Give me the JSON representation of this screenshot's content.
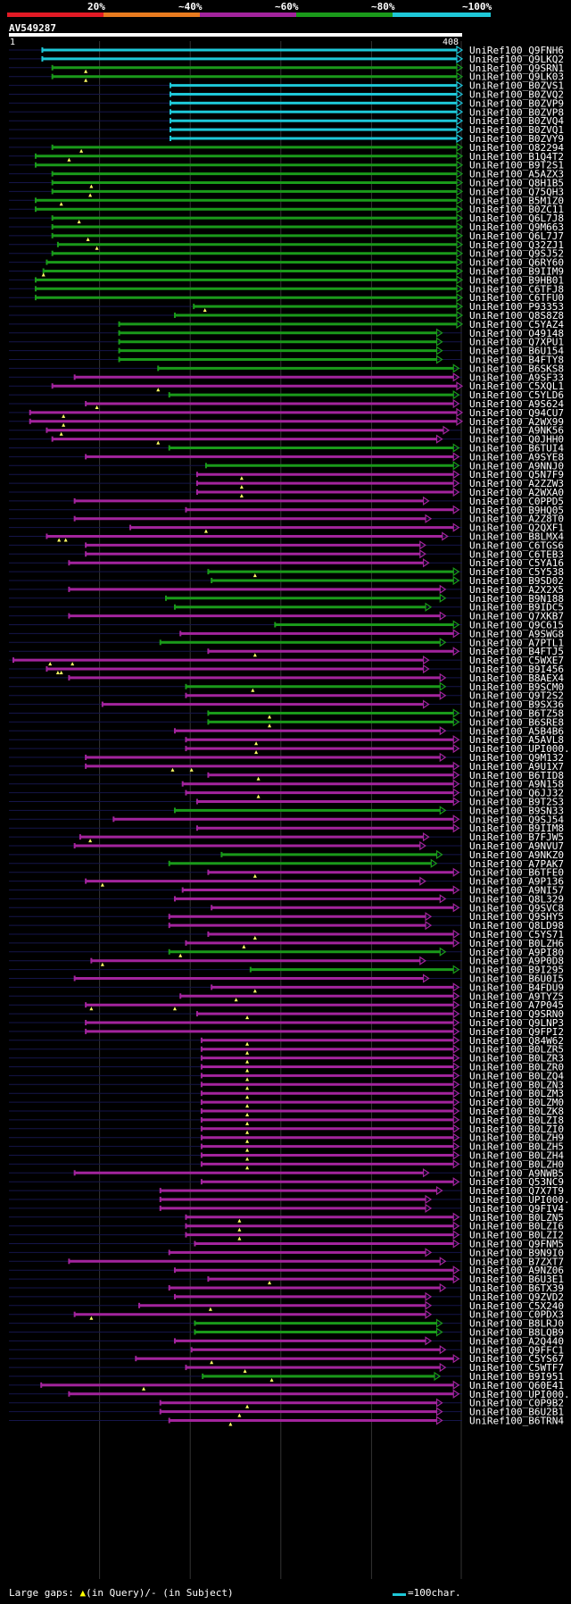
{
  "legend": {
    "bands": [
      {
        "label": "20%",
        "color": "#e21a25"
      },
      {
        "label": "~40%",
        "color": "#e87b1f"
      },
      {
        "label": "~60%",
        "color": "#a3249d"
      },
      {
        "label": "~80%",
        "color": "#1a9a1a"
      },
      {
        "label": "~100%",
        "color": "#1ec8d8"
      }
    ]
  },
  "query": {
    "id": "AV549287",
    "start": "1",
    "end": "408",
    "length": 408
  },
  "colors": {
    "cyan": "#1ec8d8",
    "green": "#1a9a1a",
    "magenta": "#a3249d",
    "gap": "#ffff66"
  },
  "footer": {
    "gaps_text": "Large gaps: ",
    "query_gap": "(in Query)/- (in Subject)",
    "scale_text": "=100char."
  },
  "hits": [
    {
      "id": "UniRef100_Q9FNH6",
      "c": "c",
      "s": 31,
      "e": 408,
      "q": []
    },
    {
      "id": "UniRef100_Q9LKQ2",
      "c": "c",
      "s": 31,
      "e": 408,
      "q": []
    },
    {
      "id": "UniRef100_Q9SRN1",
      "c": "g",
      "s": 40,
      "e": 408,
      "q": [
        70
      ]
    },
    {
      "id": "UniRef100_Q9LK03",
      "c": "g",
      "s": 40,
      "e": 408,
      "q": [
        70
      ]
    },
    {
      "id": "UniRef100_B0ZVS1",
      "c": "c",
      "s": 146,
      "e": 408,
      "q": []
    },
    {
      "id": "UniRef100_B0ZVQ2",
      "c": "c",
      "s": 146,
      "e": 408,
      "q": []
    },
    {
      "id": "UniRef100_B0ZVP9",
      "c": "c",
      "s": 146,
      "e": 408,
      "q": []
    },
    {
      "id": "UniRef100_B0ZVP8",
      "c": "c",
      "s": 146,
      "e": 408,
      "q": []
    },
    {
      "id": "UniRef100_B0ZVQ4",
      "c": "c",
      "s": 146,
      "e": 408,
      "q": []
    },
    {
      "id": "UniRef100_B0ZVQ1",
      "c": "c",
      "s": 146,
      "e": 408,
      "q": []
    },
    {
      "id": "UniRef100_B0ZVY9",
      "c": "c",
      "s": 146,
      "e": 408,
      "q": []
    },
    {
      "id": "UniRef100_O82294",
      "c": "g",
      "s": 40,
      "e": 408,
      "q": [
        66
      ]
    },
    {
      "id": "UniRef100_B1Q4T2",
      "c": "g",
      "s": 25,
      "e": 408,
      "q": [
        55
      ]
    },
    {
      "id": "UniRef100_B9T2S1",
      "c": "g",
      "s": 25,
      "e": 408,
      "q": []
    },
    {
      "id": "UniRef100_A5AZX3",
      "c": "g",
      "s": 40,
      "e": 408,
      "q": []
    },
    {
      "id": "UniRef100_Q8H1B5",
      "c": "g",
      "s": 40,
      "e": 408,
      "q": [
        75
      ]
    },
    {
      "id": "UniRef100_Q75QH3",
      "c": "g",
      "s": 40,
      "e": 408,
      "q": [
        74
      ]
    },
    {
      "id": "UniRef100_B5M1Z0",
      "c": "g",
      "s": 25,
      "e": 408,
      "q": [
        48
      ]
    },
    {
      "id": "UniRef100_B0ZC11",
      "c": "g",
      "s": 25,
      "e": 408,
      "q": []
    },
    {
      "id": "UniRef100_Q6L7J8",
      "c": "g",
      "s": 40,
      "e": 408,
      "q": [
        64
      ]
    },
    {
      "id": "UniRef100_Q9M663",
      "c": "g",
      "s": 40,
      "e": 408,
      "q": []
    },
    {
      "id": "UniRef100_Q6L7J7",
      "c": "g",
      "s": 40,
      "e": 408,
      "q": [
        72
      ]
    },
    {
      "id": "UniRef100_Q32ZJ1",
      "c": "g",
      "s": 45,
      "e": 408,
      "q": [
        80
      ]
    },
    {
      "id": "UniRef100_Q9SJ52",
      "c": "g",
      "s": 40,
      "e": 408,
      "q": []
    },
    {
      "id": "UniRef100_Q6RY60",
      "c": "g",
      "s": 35,
      "e": 408,
      "q": []
    },
    {
      "id": "UniRef100_B9IIM9",
      "c": "g",
      "s": 32,
      "e": 408,
      "q": [
        32
      ]
    },
    {
      "id": "UniRef100_B9HB01",
      "c": "g",
      "s": 25,
      "e": 408,
      "q": []
    },
    {
      "id": "UniRef100_C6TFJ8",
      "c": "g",
      "s": 25,
      "e": 408,
      "q": []
    },
    {
      "id": "UniRef100_C6TFU0",
      "c": "g",
      "s": 25,
      "e": 408,
      "q": []
    },
    {
      "id": "UniRef100_P93353",
      "c": "g",
      "s": 167,
      "e": 408,
      "q": [
        177
      ]
    },
    {
      "id": "UniRef100_Q8S8Z8",
      "c": "g",
      "s": 150,
      "e": 408,
      "q": []
    },
    {
      "id": "UniRef100_C5YAZ4",
      "c": "g",
      "s": 100,
      "e": 408,
      "q": []
    },
    {
      "id": "UniRef100_O49148",
      "c": "g",
      "s": 100,
      "e": 390,
      "q": []
    },
    {
      "id": "UniRef100_Q7XPU1",
      "c": "g",
      "s": 100,
      "e": 390,
      "q": []
    },
    {
      "id": "UniRef100_B6U154",
      "c": "g",
      "s": 100,
      "e": 390,
      "q": []
    },
    {
      "id": "UniRef100_B4FTY8",
      "c": "g",
      "s": 100,
      "e": 390,
      "q": []
    },
    {
      "id": "UniRef100_B6SKS8",
      "c": "g",
      "s": 135,
      "e": 405,
      "q": []
    },
    {
      "id": "UniRef100_A9SF33",
      "c": "m",
      "s": 60,
      "e": 405,
      "q": []
    },
    {
      "id": "UniRef100_C5XQL1",
      "c": "m",
      "s": 40,
      "e": 408,
      "q": [
        135
      ]
    },
    {
      "id": "UniRef100_C5YLD6",
      "c": "g",
      "s": 145,
      "e": 405,
      "q": []
    },
    {
      "id": "UniRef100_A9S624",
      "c": "m",
      "s": 70,
      "e": 405,
      "q": [
        80
      ]
    },
    {
      "id": "UniRef100_Q94CU7",
      "c": "m",
      "s": 20,
      "e": 408,
      "q": [
        50
      ]
    },
    {
      "id": "UniRef100_A2WX99",
      "c": "m",
      "s": 20,
      "e": 408,
      "q": [
        50
      ]
    },
    {
      "id": "UniRef100_A9NK56",
      "c": "m",
      "s": 35,
      "e": 396,
      "q": [
        48
      ]
    },
    {
      "id": "UniRef100_Q0JHH0",
      "c": "m",
      "s": 40,
      "e": 390,
      "q": [
        135
      ]
    },
    {
      "id": "UniRef100_B6TUI4",
      "c": "g",
      "s": 145,
      "e": 405,
      "q": []
    },
    {
      "id": "UniRef100_A9SYE8",
      "c": "m",
      "s": 70,
      "e": 405,
      "q": []
    },
    {
      "id": "UniRef100_A9NNJ0",
      "c": "g",
      "s": 178,
      "e": 405,
      "q": []
    },
    {
      "id": "UniRef100_Q5N7F9",
      "c": "m",
      "s": 170,
      "e": 405,
      "q": [
        210
      ]
    },
    {
      "id": "UniRef100_A2ZZW3",
      "c": "m",
      "s": 170,
      "e": 405,
      "q": [
        210
      ]
    },
    {
      "id": "UniRef100_A2WXA0",
      "c": "m",
      "s": 170,
      "e": 405,
      "q": [
        210
      ]
    },
    {
      "id": "UniRef100_C0PPD5",
      "c": "m",
      "s": 60,
      "e": 378,
      "q": []
    },
    {
      "id": "UniRef100_B9HQ05",
      "c": "m",
      "s": 160,
      "e": 405,
      "q": []
    },
    {
      "id": "UniRef100_A2Z8T0",
      "c": "m",
      "s": 60,
      "e": 380,
      "q": []
    },
    {
      "id": "UniRef100_Q2QXF1",
      "c": "m",
      "s": 110,
      "e": 405,
      "q": [
        178
      ]
    },
    {
      "id": "UniRef100_B8LMX4",
      "c": "m",
      "s": 35,
      "e": 395,
      "q": [
        46,
        52
      ]
    },
    {
      "id": "UniRef100_C6TGS6",
      "c": "m",
      "s": 70,
      "e": 375,
      "q": []
    },
    {
      "id": "UniRef100_C6TEB3",
      "c": "m",
      "s": 70,
      "e": 375,
      "q": []
    },
    {
      "id": "UniRef100_C5YA16",
      "c": "m",
      "s": 55,
      "e": 378,
      "q": []
    },
    {
      "id": "UniRef100_C5Y538",
      "c": "g",
      "s": 180,
      "e": 405,
      "q": [
        222
      ]
    },
    {
      "id": "UniRef100_B9SD02",
      "c": "g",
      "s": 183,
      "e": 405,
      "q": []
    },
    {
      "id": "UniRef100_A2X2X5",
      "c": "m",
      "s": 55,
      "e": 393,
      "q": []
    },
    {
      "id": "UniRef100_B9N188",
      "c": "g",
      "s": 142,
      "e": 393,
      "q": []
    },
    {
      "id": "UniRef100_B9IDC5",
      "c": "g",
      "s": 150,
      "e": 380,
      "q": []
    },
    {
      "id": "UniRef100_Q7XKB7",
      "c": "m",
      "s": 55,
      "e": 393,
      "q": []
    },
    {
      "id": "UniRef100_Q9C615",
      "c": "g",
      "s": 240,
      "e": 405,
      "q": []
    },
    {
      "id": "UniRef100_A9SWG8",
      "c": "m",
      "s": 155,
      "e": 405,
      "q": []
    },
    {
      "id": "UniRef100_A7PTL1",
      "c": "g",
      "s": 137,
      "e": 393,
      "q": []
    },
    {
      "id": "UniRef100_B4FTJ5",
      "c": "m",
      "s": 180,
      "e": 405,
      "q": [
        222
      ]
    },
    {
      "id": "UniRef100_C5WXE7",
      "c": "m",
      "s": 5,
      "e": 378,
      "q": [
        38,
        58
      ]
    },
    {
      "id": "UniRef100_B9I456",
      "c": "m",
      "s": 35,
      "e": 378,
      "q": [
        45,
        48
      ]
    },
    {
      "id": "UniRef100_B8AEX4",
      "c": "m",
      "s": 55,
      "e": 393,
      "q": []
    },
    {
      "id": "UniRef100_B9SCM0",
      "c": "g",
      "s": 160,
      "e": 393,
      "q": [
        220
      ]
    },
    {
      "id": "UniRef100_Q9T2S2",
      "c": "m",
      "s": 160,
      "e": 393,
      "q": []
    },
    {
      "id": "UniRef100_B9SX36",
      "c": "m",
      "s": 85,
      "e": 378,
      "q": []
    },
    {
      "id": "UniRef100_B6TZ58",
      "c": "g",
      "s": 180,
      "e": 405,
      "q": [
        235
      ]
    },
    {
      "id": "UniRef100_B6SRE8",
      "c": "g",
      "s": 180,
      "e": 405,
      "q": [
        235
      ]
    },
    {
      "id": "UniRef100_A5B4B6",
      "c": "m",
      "s": 150,
      "e": 393,
      "q": []
    },
    {
      "id": "UniRef100_A5AVL8",
      "c": "m",
      "s": 160,
      "e": 405,
      "q": [
        223
      ]
    },
    {
      "id": "UniRef100_UPI000..",
      "c": "m",
      "s": 160,
      "e": 405,
      "q": [
        223
      ]
    },
    {
      "id": "UniRef100_Q9M132",
      "c": "m",
      "s": 70,
      "e": 393,
      "q": []
    },
    {
      "id": "UniRef100_A9U1X7",
      "c": "m",
      "s": 70,
      "e": 405,
      "q": [
        148,
        165
      ]
    },
    {
      "id": "UniRef100_B6TID8",
      "c": "m",
      "s": 180,
      "e": 405,
      "q": [
        225
      ]
    },
    {
      "id": "UniRef100_A9N158",
      "c": "m",
      "s": 157,
      "e": 405,
      "q": []
    },
    {
      "id": "UniRef100_Q6JJ32",
      "c": "m",
      "s": 160,
      "e": 405,
      "q": [
        225
      ]
    },
    {
      "id": "UniRef100_B9T2S3",
      "c": "m",
      "s": 170,
      "e": 405,
      "q": []
    },
    {
      "id": "UniRef100_B9SN33",
      "c": "g",
      "s": 150,
      "e": 393,
      "q": []
    },
    {
      "id": "UniRef100_Q9SJ54",
      "c": "m",
      "s": 95,
      "e": 405,
      "q": []
    },
    {
      "id": "UniRef100_B9IIM8",
      "c": "m",
      "s": 170,
      "e": 405,
      "q": []
    },
    {
      "id": "UniRef100_B7FJW5",
      "c": "m",
      "s": 65,
      "e": 378,
      "q": [
        74
      ]
    },
    {
      "id": "UniRef100_A9NVU7",
      "c": "m",
      "s": 60,
      "e": 375,
      "q": []
    },
    {
      "id": "UniRef100_A9NKZ0",
      "c": "g",
      "s": 192,
      "e": 390,
      "q": []
    },
    {
      "id": "UniRef100_A7PAK7",
      "c": "g",
      "s": 145,
      "e": 385,
      "q": []
    },
    {
      "id": "UniRef100_B6TFE0",
      "c": "m",
      "s": 180,
      "e": 405,
      "q": [
        222
      ]
    },
    {
      "id": "UniRef100_A9P136",
      "c": "m",
      "s": 70,
      "e": 375,
      "q": [
        85
      ]
    },
    {
      "id": "UniRef100_A9NI57",
      "c": "m",
      "s": 157,
      "e": 405,
      "q": []
    },
    {
      "id": "UniRef100_Q8L329",
      "c": "m",
      "s": 150,
      "e": 393,
      "q": []
    },
    {
      "id": "UniRef100_Q9SVC8",
      "c": "m",
      "s": 183,
      "e": 405,
      "q": []
    },
    {
      "id": "UniRef100_Q9SHY5",
      "c": "m",
      "s": 145,
      "e": 380,
      "q": []
    },
    {
      "id": "UniRef100_Q8LD98",
      "c": "m",
      "s": 145,
      "e": 380,
      "q": []
    },
    {
      "id": "UniRef100_C5YS71",
      "c": "m",
      "s": 180,
      "e": 405,
      "q": [
        222
      ]
    },
    {
      "id": "UniRef100_B0LZH6",
      "c": "m",
      "s": 160,
      "e": 405,
      "q": [
        212
      ]
    },
    {
      "id": "UniRef100_A9PI80",
      "c": "g",
      "s": 145,
      "e": 393,
      "q": [
        155
      ]
    },
    {
      "id": "UniRef100_A9P0D8",
      "c": "m",
      "s": 75,
      "e": 375,
      "q": [
        85
      ]
    },
    {
      "id": "UniRef100_B9I295",
      "c": "g",
      "s": 218,
      "e": 405,
      "q": []
    },
    {
      "id": "UniRef100_B6U0I5",
      "c": "m",
      "s": 60,
      "e": 378,
      "q": []
    },
    {
      "id": "UniRef100_B4FDU9",
      "c": "m",
      "s": 183,
      "e": 405,
      "q": [
        222
      ]
    },
    {
      "id": "UniRef100_A9TYZ5",
      "c": "m",
      "s": 155,
      "e": 405,
      "q": [
        205
      ]
    },
    {
      "id": "UniRef100_A7P045",
      "c": "m",
      "s": 70,
      "e": 405,
      "q": [
        75,
        150
      ]
    },
    {
      "id": "UniRef100_Q9SRN0",
      "c": "m",
      "s": 170,
      "e": 405,
      "q": [
        215
      ]
    },
    {
      "id": "UniRef100_Q9LNP3",
      "c": "m",
      "s": 70,
      "e": 405,
      "q": []
    },
    {
      "id": "UniRef100_Q9FPI2",
      "c": "m",
      "s": 70,
      "e": 405,
      "q": []
    },
    {
      "id": "UniRef100_Q84W62",
      "c": "m",
      "s": 174,
      "e": 405,
      "q": [
        215
      ]
    },
    {
      "id": "UniRef100_B0LZR5",
      "c": "m",
      "s": 174,
      "e": 405,
      "q": [
        215
      ]
    },
    {
      "id": "UniRef100_B0LZR3",
      "c": "m",
      "s": 174,
      "e": 405,
      "q": [
        215
      ]
    },
    {
      "id": "UniRef100_B0LZR0",
      "c": "m",
      "s": 174,
      "e": 405,
      "q": [
        215
      ]
    },
    {
      "id": "UniRef100_B0LZQ4",
      "c": "m",
      "s": 174,
      "e": 405,
      "q": [
        215
      ]
    },
    {
      "id": "UniRef100_B0LZN3",
      "c": "m",
      "s": 174,
      "e": 405,
      "q": [
        215
      ]
    },
    {
      "id": "UniRef100_B0LZM3",
      "c": "m",
      "s": 174,
      "e": 405,
      "q": [
        215
      ]
    },
    {
      "id": "UniRef100_B0LZM0",
      "c": "m",
      "s": 174,
      "e": 405,
      "q": [
        215
      ]
    },
    {
      "id": "UniRef100_B0LZK8",
      "c": "m",
      "s": 174,
      "e": 405,
      "q": [
        215
      ]
    },
    {
      "id": "UniRef100_B0LZI8",
      "c": "m",
      "s": 174,
      "e": 405,
      "q": [
        215
      ]
    },
    {
      "id": "UniRef100_B0LZI0",
      "c": "m",
      "s": 174,
      "e": 405,
      "q": [
        215
      ]
    },
    {
      "id": "UniRef100_B0LZH9",
      "c": "m",
      "s": 174,
      "e": 405,
      "q": [
        215
      ]
    },
    {
      "id": "UniRef100_B0LZH5",
      "c": "m",
      "s": 174,
      "e": 405,
      "q": [
        215
      ]
    },
    {
      "id": "UniRef100_B0LZH4",
      "c": "m",
      "s": 174,
      "e": 405,
      "q": [
        215
      ]
    },
    {
      "id": "UniRef100_B0LZH0",
      "c": "m",
      "s": 174,
      "e": 405,
      "q": [
        215
      ]
    },
    {
      "id": "UniRef100_A9NWB5",
      "c": "m",
      "s": 60,
      "e": 378,
      "q": []
    },
    {
      "id": "UniRef100_Q53NC9",
      "c": "m",
      "s": 174,
      "e": 405,
      "q": []
    },
    {
      "id": "UniRef100_Q7X7T9",
      "c": "m",
      "s": 137,
      "e": 390,
      "q": []
    },
    {
      "id": "UniRef100_UPI000..",
      "c": "m",
      "s": 137,
      "e": 380,
      "q": []
    },
    {
      "id": "UniRef100_Q9FIV4",
      "c": "m",
      "s": 137,
      "e": 380,
      "q": []
    },
    {
      "id": "UniRef100_B0LZN5",
      "c": "m",
      "s": 160,
      "e": 405,
      "q": [
        208
      ]
    },
    {
      "id": "UniRef100_B0LZI6",
      "c": "m",
      "s": 160,
      "e": 405,
      "q": [
        208
      ]
    },
    {
      "id": "UniRef100_B0LZI2",
      "c": "m",
      "s": 160,
      "e": 405,
      "q": [
        208
      ]
    },
    {
      "id": "UniRef100_Q9FNM5",
      "c": "m",
      "s": 168,
      "e": 405,
      "q": []
    },
    {
      "id": "UniRef100_B9N9I0",
      "c": "m",
      "s": 145,
      "e": 380,
      "q": []
    },
    {
      "id": "UniRef100_B7ZXT7",
      "c": "m",
      "s": 55,
      "e": 393,
      "q": []
    },
    {
      "id": "UniRef100_A9NZ06",
      "c": "m",
      "s": 150,
      "e": 405,
      "q": []
    },
    {
      "id": "UniRef100_B6U3E1",
      "c": "m",
      "s": 180,
      "e": 405,
      "q": [
        235
      ]
    },
    {
      "id": "UniRef100_B6TX39",
      "c": "m",
      "s": 145,
      "e": 393,
      "q": []
    },
    {
      "id": "UniRef100_Q9ZVD2",
      "c": "m",
      "s": 150,
      "e": 380,
      "q": []
    },
    {
      "id": "UniRef100_C5X240",
      "c": "m",
      "s": 118,
      "e": 380,
      "q": [
        182
      ]
    },
    {
      "id": "UniRef100_C0PDX3",
      "c": "m",
      "s": 60,
      "e": 380,
      "q": [
        75
      ]
    },
    {
      "id": "UniRef100_B8LRJ0",
      "c": "g",
      "s": 168,
      "e": 390,
      "q": []
    },
    {
      "id": "UniRef100_B8LQB9",
      "c": "g",
      "s": 168,
      "e": 390,
      "q": []
    },
    {
      "id": "UniRef100_A2Q440",
      "c": "m",
      "s": 150,
      "e": 380,
      "q": []
    },
    {
      "id": "UniRef100_Q9FFC1",
      "c": "m",
      "s": 165,
      "e": 393,
      "q": []
    },
    {
      "id": "UniRef100_C5YS67",
      "c": "m",
      "s": 115,
      "e": 405,
      "q": [
        183
      ]
    },
    {
      "id": "UniRef100_C5WTF7",
      "c": "m",
      "s": 160,
      "e": 393,
      "q": [
        213
      ]
    },
    {
      "id": "UniRef100_B9I951",
      "c": "g",
      "s": 175,
      "e": 388,
      "q": [
        237
      ]
    },
    {
      "id": "UniRef100_Q60E41",
      "c": "m",
      "s": 30,
      "e": 405,
      "q": [
        122
      ]
    },
    {
      "id": "UniRef100_UPI000..",
      "c": "m",
      "s": 55,
      "e": 405,
      "q": []
    },
    {
      "id": "UniRef100_C0P9B2",
      "c": "m",
      "s": 137,
      "e": 390,
      "q": [
        215
      ]
    },
    {
      "id": "UniRef100_B6U2B1",
      "c": "m",
      "s": 137,
      "e": 390,
      "q": [
        208
      ]
    },
    {
      "id": "UniRef100_B6TRN4",
      "c": "m",
      "s": 145,
      "e": 390,
      "q": [
        200
      ]
    }
  ]
}
